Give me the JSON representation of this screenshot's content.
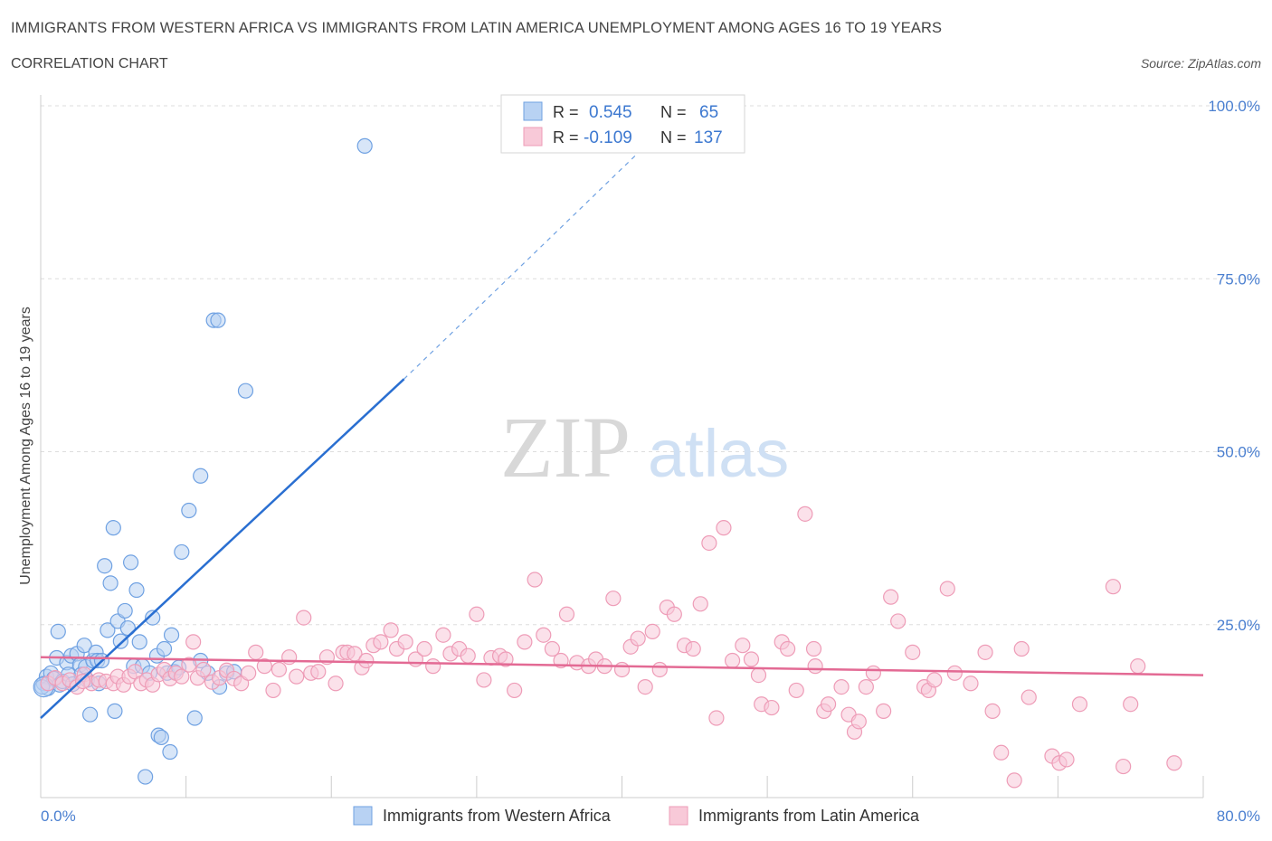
{
  "title": "IMMIGRANTS FROM WESTERN AFRICA VS IMMIGRANTS FROM LATIN AMERICA UNEMPLOYMENT AMONG AGES 16 TO 19 YEARS",
  "subtitle": "CORRELATION CHART",
  "source": "Source: ZipAtlas.com",
  "watermark": {
    "zip": "ZIP",
    "atlas": "atlas"
  },
  "colors": {
    "blue_fill": "#b8d2f3",
    "blue_stroke": "#6fa1e2",
    "blue_line": "#2a6fd1",
    "pink_fill": "#f8c9d8",
    "pink_stroke": "#ee9cb7",
    "pink_line": "#e36a94",
    "tick_text": "#4a7fd0",
    "grid": "#dddddd"
  },
  "legend": {
    "rows": [
      {
        "r_label": "R =",
        "r_value": "0.545",
        "n_label": "N =",
        "n_value": "65"
      },
      {
        "r_label": "R =",
        "r_value": "-0.109",
        "n_label": "N =",
        "n_value": "137"
      }
    ]
  },
  "bottom_legend": [
    "Immigrants from Western Africa",
    "Immigrants from Latin America"
  ],
  "chart_data": {
    "type": "scatter",
    "title": "",
    "xlabel": "",
    "ylabel": "Unemployment Among Ages 16 to 19 years",
    "xlim": [
      0,
      80
    ],
    "ylim": [
      0,
      100
    ],
    "x_tick_labels": [
      "0.0%",
      "80.0%"
    ],
    "y_tick_labels": [
      "25.0%",
      "50.0%",
      "75.0%",
      "100.0%"
    ],
    "y_ticks": [
      25,
      50,
      75,
      100
    ],
    "grid": true,
    "series": [
      {
        "name": "Immigrants from Western Africa",
        "color": "#6fa1e2",
        "trend": {
          "x0": 0,
          "y0": 11.5,
          "x1": 25,
          "y1": 60.5,
          "dash_to_x": 42,
          "dash_to_y": 95
        },
        "points": [
          [
            0.2,
            16.5
          ],
          [
            0.4,
            17.5
          ],
          [
            0.5,
            15.8
          ],
          [
            0.7,
            18
          ],
          [
            0.9,
            17.2
          ],
          [
            1.1,
            20.2
          ],
          [
            1.2,
            24
          ],
          [
            1.3,
            16.3
          ],
          [
            1.5,
            16.8
          ],
          [
            1.8,
            19.5
          ],
          [
            1.9,
            17.8
          ],
          [
            2.1,
            20.5
          ],
          [
            2.2,
            16.4
          ],
          [
            2.5,
            20.8
          ],
          [
            2.7,
            19.2
          ],
          [
            2.8,
            17.8
          ],
          [
            3.0,
            22
          ],
          [
            3.1,
            18.9
          ],
          [
            3.2,
            17
          ],
          [
            3.4,
            12
          ],
          [
            3.6,
            19.8
          ],
          [
            3.8,
            21
          ],
          [
            3.9,
            19.8
          ],
          [
            4.0,
            16.5
          ],
          [
            4.2,
            19.8
          ],
          [
            4.4,
            33.5
          ],
          [
            4.6,
            24.2
          ],
          [
            4.8,
            31
          ],
          [
            5.0,
            39
          ],
          [
            5.1,
            12.5
          ],
          [
            5.3,
            25.5
          ],
          [
            5.5,
            22.6
          ],
          [
            5.8,
            27
          ],
          [
            6.0,
            24.5
          ],
          [
            6.2,
            34
          ],
          [
            6.4,
            19
          ],
          [
            6.6,
            30
          ],
          [
            6.8,
            22.5
          ],
          [
            7.0,
            19
          ],
          [
            7.2,
            3
          ],
          [
            7.5,
            18
          ],
          [
            7.7,
            26
          ],
          [
            8.0,
            20.5
          ],
          [
            8.1,
            9
          ],
          [
            8.3,
            8.7
          ],
          [
            8.5,
            21.5
          ],
          [
            8.7,
            18
          ],
          [
            8.9,
            6.6
          ],
          [
            9.0,
            23.5
          ],
          [
            9.2,
            18.2
          ],
          [
            9.5,
            18.8
          ],
          [
            9.7,
            35.5
          ],
          [
            10.2,
            41.5
          ],
          [
            10.6,
            11.5
          ],
          [
            11.0,
            19.8
          ],
          [
            11.0,
            46.5
          ],
          [
            11.5,
            18
          ],
          [
            11.9,
            69
          ],
          [
            12.2,
            69
          ],
          [
            12.3,
            16
          ],
          [
            12.8,
            18
          ],
          [
            13.3,
            18.2
          ],
          [
            14.1,
            58.8
          ],
          [
            22.3,
            94.2
          ],
          [
            0.1,
            16
          ]
        ]
      },
      {
        "name": "Immigrants from Latin America",
        "color": "#ee9cb7",
        "trend": {
          "x0": 0,
          "y0": 20.3,
          "x1": 80,
          "y1": 17.7
        },
        "points": [
          [
            0.5,
            16.5
          ],
          [
            1.0,
            17.3
          ],
          [
            1.5,
            16.5
          ],
          [
            2.0,
            17
          ],
          [
            2.5,
            16
          ],
          [
            3.0,
            17.8
          ],
          [
            3.5,
            16.5
          ],
          [
            4.0,
            17
          ],
          [
            4.5,
            16.8
          ],
          [
            5.0,
            16.5
          ],
          [
            5.3,
            17.5
          ],
          [
            5.7,
            16.3
          ],
          [
            6.1,
            17.5
          ],
          [
            6.5,
            18.2
          ],
          [
            6.9,
            16.5
          ],
          [
            7.3,
            17
          ],
          [
            7.7,
            16.3
          ],
          [
            8.1,
            17.8
          ],
          [
            8.5,
            18.5
          ],
          [
            8.9,
            17.2
          ],
          [
            9.3,
            18
          ],
          [
            9.7,
            17.5
          ],
          [
            10.2,
            19.2
          ],
          [
            10.5,
            22.5
          ],
          [
            10.8,
            17.3
          ],
          [
            11.2,
            18.5
          ],
          [
            11.8,
            16.7
          ],
          [
            12.3,
            17.3
          ],
          [
            12.8,
            18.4
          ],
          [
            13.3,
            17.2
          ],
          [
            13.8,
            16.5
          ],
          [
            14.3,
            18
          ],
          [
            14.8,
            21
          ],
          [
            15.4,
            19
          ],
          [
            16.0,
            15.5
          ],
          [
            16.4,
            18.5
          ],
          [
            17.1,
            20.3
          ],
          [
            17.6,
            17.5
          ],
          [
            18.1,
            26
          ],
          [
            18.6,
            18
          ],
          [
            19.1,
            18.2
          ],
          [
            19.7,
            20.3
          ],
          [
            20.3,
            16.5
          ],
          [
            20.8,
            21
          ],
          [
            21.1,
            21
          ],
          [
            21.6,
            20.8
          ],
          [
            22.1,
            18.8
          ],
          [
            22.4,
            19.8
          ],
          [
            22.9,
            22
          ],
          [
            23.4,
            22.5
          ],
          [
            24.1,
            24.2
          ],
          [
            24.5,
            21.5
          ],
          [
            25.1,
            22.5
          ],
          [
            25.8,
            20
          ],
          [
            26.4,
            21.5
          ],
          [
            27.0,
            19
          ],
          [
            27.7,
            23.5
          ],
          [
            28.2,
            20.8
          ],
          [
            28.8,
            21.5
          ],
          [
            29.4,
            20.5
          ],
          [
            30.0,
            26.5
          ],
          [
            30.5,
            17
          ],
          [
            31.0,
            20.2
          ],
          [
            31.6,
            20.5
          ],
          [
            32.0,
            20
          ],
          [
            32.6,
            15.5
          ],
          [
            33.3,
            22.5
          ],
          [
            34.0,
            31.5
          ],
          [
            34.6,
            23.5
          ],
          [
            35.2,
            21.5
          ],
          [
            35.8,
            19.8
          ],
          [
            36.2,
            26.5
          ],
          [
            36.9,
            19.5
          ],
          [
            37.7,
            19
          ],
          [
            38.2,
            20
          ],
          [
            38.8,
            19
          ],
          [
            39.4,
            28.8
          ],
          [
            40.0,
            18.5
          ],
          [
            40.6,
            21.8
          ],
          [
            41.1,
            23
          ],
          [
            41.6,
            16
          ],
          [
            42.1,
            24
          ],
          [
            42.6,
            18.5
          ],
          [
            43.1,
            27.5
          ],
          [
            43.6,
            26.5
          ],
          [
            44.3,
            22
          ],
          [
            44.9,
            21.5
          ],
          [
            45.4,
            28
          ],
          [
            46.0,
            36.8
          ],
          [
            46.5,
            11.5
          ],
          [
            47.0,
            39
          ],
          [
            47.6,
            19.8
          ],
          [
            48.3,
            22
          ],
          [
            48.9,
            20
          ],
          [
            49.4,
            17.7
          ],
          [
            49.6,
            13.5
          ],
          [
            50.3,
            13
          ],
          [
            51.0,
            22.5
          ],
          [
            51.4,
            21.5
          ],
          [
            52.0,
            15.5
          ],
          [
            52.6,
            41
          ],
          [
            53.2,
            21.5
          ],
          [
            53.3,
            19
          ],
          [
            53.9,
            12.5
          ],
          [
            54.2,
            13.5
          ],
          [
            55.1,
            16
          ],
          [
            55.6,
            12
          ],
          [
            56.0,
            9.5
          ],
          [
            56.3,
            11
          ],
          [
            56.8,
            16
          ],
          [
            57.3,
            18
          ],
          [
            58.0,
            12.5
          ],
          [
            58.5,
            29
          ],
          [
            59.0,
            25.5
          ],
          [
            60.0,
            21
          ],
          [
            60.8,
            16
          ],
          [
            61.1,
            15.5
          ],
          [
            61.5,
            17
          ],
          [
            62.4,
            30.2
          ],
          [
            62.9,
            18
          ],
          [
            64.0,
            16.5
          ],
          [
            65.0,
            21
          ],
          [
            65.5,
            12.5
          ],
          [
            66.1,
            6.5
          ],
          [
            67.0,
            2.5
          ],
          [
            67.5,
            21.5
          ],
          [
            68.0,
            14.5
          ],
          [
            69.6,
            6
          ],
          [
            70.1,
            5
          ],
          [
            70.6,
            5.5
          ],
          [
            71.5,
            13.5
          ],
          [
            73.8,
            30.5
          ],
          [
            74.5,
            4.5
          ],
          [
            75.0,
            13.5
          ],
          [
            75.5,
            19
          ],
          [
            78.0,
            5
          ],
          [
            2.9,
            16.8
          ]
        ]
      }
    ]
  }
}
